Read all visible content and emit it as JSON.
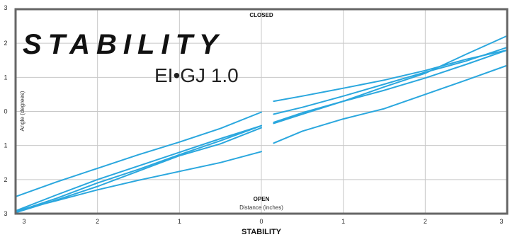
{
  "chart_data": {
    "type": "line",
    "title": "STABILITY",
    "subtitle": "EI•GJ 1.0",
    "footer_title": "STABILITY",
    "xlabel": "Distance (inches)",
    "ylabel": "Angle (degrees)",
    "top_label": "CLOSED",
    "bottom_label": "OPEN",
    "xlim": [
      -3,
      3
    ],
    "ylim": [
      -3,
      3
    ],
    "x_ticks": [
      {
        "value": -3,
        "label": "3"
      },
      {
        "value": -2,
        "label": "2"
      },
      {
        "value": -1,
        "label": "1"
      },
      {
        "value": 0,
        "label": "0"
      },
      {
        "value": 1,
        "label": "1"
      },
      {
        "value": 2,
        "label": "2"
      },
      {
        "value": 3,
        "label": "3"
      }
    ],
    "y_ticks": [
      {
        "value": 3,
        "label": "3"
      },
      {
        "value": 2,
        "label": "2"
      },
      {
        "value": 1,
        "label": "1"
      },
      {
        "value": 0,
        "label": "0"
      },
      {
        "value": -1,
        "label": "1"
      },
      {
        "value": -2,
        "label": "2"
      },
      {
        "value": -3,
        "label": "3"
      }
    ],
    "grid": true,
    "line_color": "#2aa7de",
    "grid_color": "#c8c8c8",
    "frame_color": "#666666",
    "series": [
      {
        "left": [
          [
            -3,
            -2.5
          ],
          [
            -2.5,
            -2.07
          ],
          [
            -2,
            -1.67
          ],
          [
            -1.5,
            -1.27
          ],
          [
            -1,
            -0.9
          ],
          [
            -0.5,
            -0.5
          ],
          [
            0,
            -0.02
          ]
        ],
        "right": [
          [
            0.15,
            0.3
          ],
          [
            0.5,
            0.45
          ],
          [
            1,
            0.68
          ],
          [
            1.5,
            0.92
          ],
          [
            2,
            1.2
          ],
          [
            2.5,
            1.53
          ],
          [
            3,
            1.8
          ]
        ]
      },
      {
        "left": [
          [
            -3,
            -2.92
          ],
          [
            -2.5,
            -2.45
          ],
          [
            -2,
            -2.0
          ],
          [
            -1.5,
            -1.6
          ],
          [
            -1,
            -1.2
          ],
          [
            -0.5,
            -0.8
          ],
          [
            0,
            -0.42
          ]
        ],
        "right": [
          [
            0.15,
            -0.08
          ],
          [
            0.5,
            0.12
          ],
          [
            1,
            0.45
          ],
          [
            1.5,
            0.8
          ],
          [
            2,
            1.15
          ],
          [
            2.5,
            1.48
          ],
          [
            3,
            1.88
          ]
        ]
      },
      {
        "left": [
          [
            -3,
            -2.95
          ],
          [
            -2.5,
            -2.55
          ],
          [
            -2,
            -2.1
          ],
          [
            -1.5,
            -1.7
          ],
          [
            -1,
            -1.27
          ],
          [
            -0.5,
            -0.86
          ],
          [
            0,
            -0.42
          ]
        ],
        "right": [
          [
            0.15,
            -0.32
          ],
          [
            0.5,
            -0.04
          ],
          [
            1,
            0.3
          ],
          [
            1.5,
            0.62
          ],
          [
            2,
            0.98
          ],
          [
            2.5,
            1.38
          ],
          [
            3,
            1.8
          ]
        ]
      },
      {
        "left": [
          [
            -3,
            -2.97
          ],
          [
            -2.5,
            -2.6
          ],
          [
            -2,
            -2.2
          ],
          [
            -1.5,
            -1.75
          ],
          [
            -1,
            -1.3
          ],
          [
            -0.5,
            -0.95
          ],
          [
            0,
            -0.48
          ]
        ],
        "right": [
          [
            0.15,
            -0.35
          ],
          [
            0.5,
            -0.08
          ],
          [
            1,
            0.3
          ],
          [
            1.5,
            0.72
          ],
          [
            2,
            1.12
          ],
          [
            2.5,
            1.68
          ],
          [
            3,
            2.22
          ]
        ]
      },
      {
        "left": [
          [
            -3,
            -2.92
          ],
          [
            -2.5,
            -2.62
          ],
          [
            -2,
            -2.3
          ],
          [
            -1.5,
            -2.02
          ],
          [
            -1,
            -1.76
          ],
          [
            -0.5,
            -1.5
          ],
          [
            0,
            -1.18
          ]
        ],
        "right": [
          [
            0.15,
            -0.93
          ],
          [
            0.5,
            -0.58
          ],
          [
            1,
            -0.22
          ],
          [
            1.5,
            0.08
          ],
          [
            2,
            0.5
          ],
          [
            2.5,
            0.92
          ],
          [
            3,
            1.35
          ]
        ]
      }
    ]
  }
}
